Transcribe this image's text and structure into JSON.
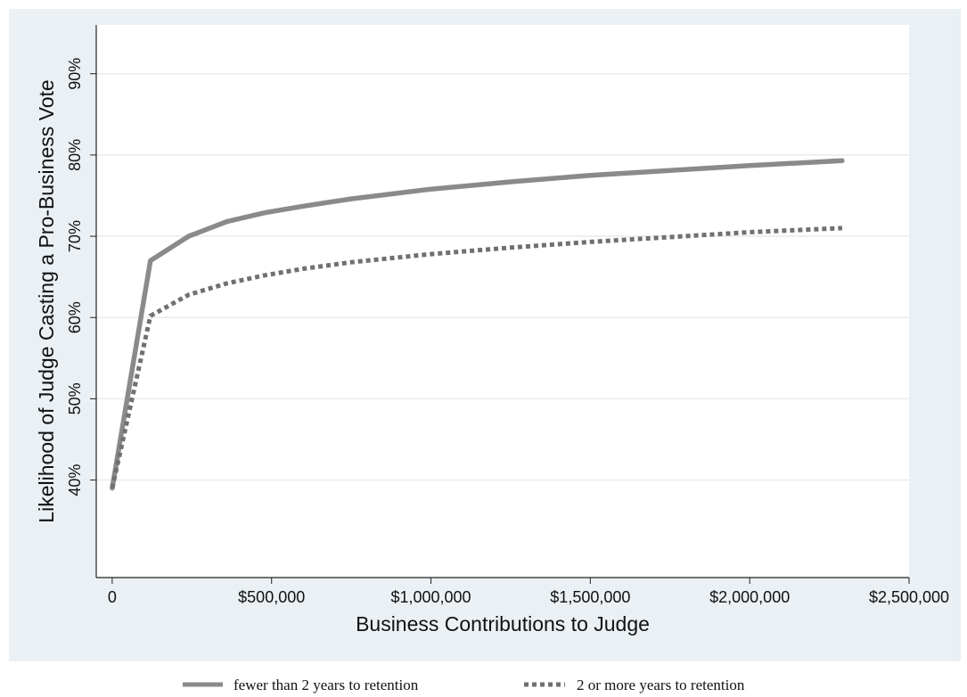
{
  "chart_data": {
    "type": "line",
    "xlabel": "Business Contributions to Judge",
    "ylabel": "Likelihood of Judge Casting a Pro-Business Vote",
    "xlim": [
      -50000,
      2500000
    ],
    "ylim": [
      28,
      96
    ],
    "x_ticks": [
      {
        "value": 0,
        "label": "0"
      },
      {
        "value": 500000,
        "label": "$500,000"
      },
      {
        "value": 1000000,
        "label": "$1,000,000"
      },
      {
        "value": 1500000,
        "label": "$1,500,000"
      },
      {
        "value": 2000000,
        "label": "$2,000,000"
      },
      {
        "value": 2500000,
        "label": "$2,500,000"
      }
    ],
    "y_ticks": [
      {
        "value": 40,
        "label": "40%"
      },
      {
        "value": 50,
        "label": "50%"
      },
      {
        "value": 60,
        "label": "60%"
      },
      {
        "value": 70,
        "label": "70%"
      },
      {
        "value": 80,
        "label": "80%"
      },
      {
        "value": 90,
        "label": "90%"
      }
    ],
    "grid": true,
    "legend_position": "bottom",
    "series": [
      {
        "name": "fewer than 2 years to retention",
        "style": "solid",
        "color": "#8a8a8a",
        "x": [
          0,
          120000,
          240000,
          360000,
          480000,
          600000,
          750000,
          1000000,
          1250000,
          1500000,
          1750000,
          2000000,
          2290000
        ],
        "y": [
          39,
          67,
          70,
          71.8,
          72.9,
          73.7,
          74.6,
          75.8,
          76.7,
          77.5,
          78.1,
          78.7,
          79.3
        ]
      },
      {
        "name": "2 or more years to retention",
        "style": "dotted",
        "color": "#707070",
        "x": [
          0,
          120000,
          240000,
          360000,
          480000,
          600000,
          750000,
          1000000,
          1250000,
          1500000,
          1750000,
          2000000,
          2290000
        ],
        "y": [
          39,
          60.2,
          62.8,
          64.2,
          65.2,
          66,
          66.8,
          67.8,
          68.6,
          69.3,
          69.9,
          70.5,
          71
        ]
      }
    ]
  }
}
